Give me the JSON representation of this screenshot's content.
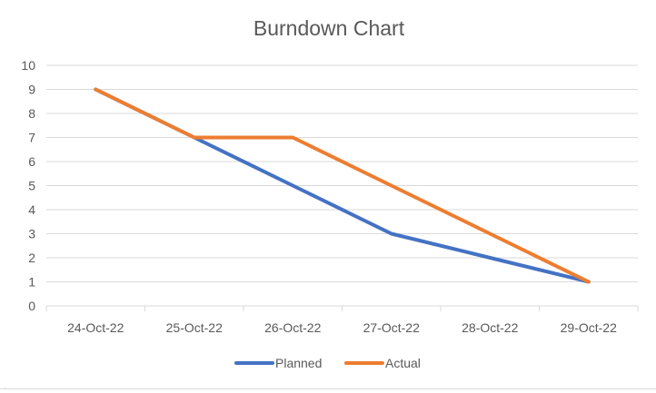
{
  "chart_data": {
    "type": "line",
    "title": "Burndown Chart",
    "xlabel": "",
    "ylabel": "",
    "categories": [
      "24-Oct-22",
      "25-Oct-22",
      "26-Oct-22",
      "27-Oct-22",
      "28-Oct-22",
      "29-Oct-22"
    ],
    "ylim": [
      0,
      10
    ],
    "yticks": [
      "0",
      "1",
      "2",
      "3",
      "4",
      "5",
      "6",
      "7",
      "8",
      "9",
      "10"
    ],
    "grid": true,
    "legend_position": "bottom",
    "series": [
      {
        "name": "Planned",
        "color": "#4472C4",
        "values": [
          9,
          7,
          5,
          3,
          2,
          1
        ]
      },
      {
        "name": "Actual",
        "color": "#ED7D31",
        "values": [
          9,
          7,
          7,
          5,
          3,
          1
        ]
      }
    ]
  }
}
